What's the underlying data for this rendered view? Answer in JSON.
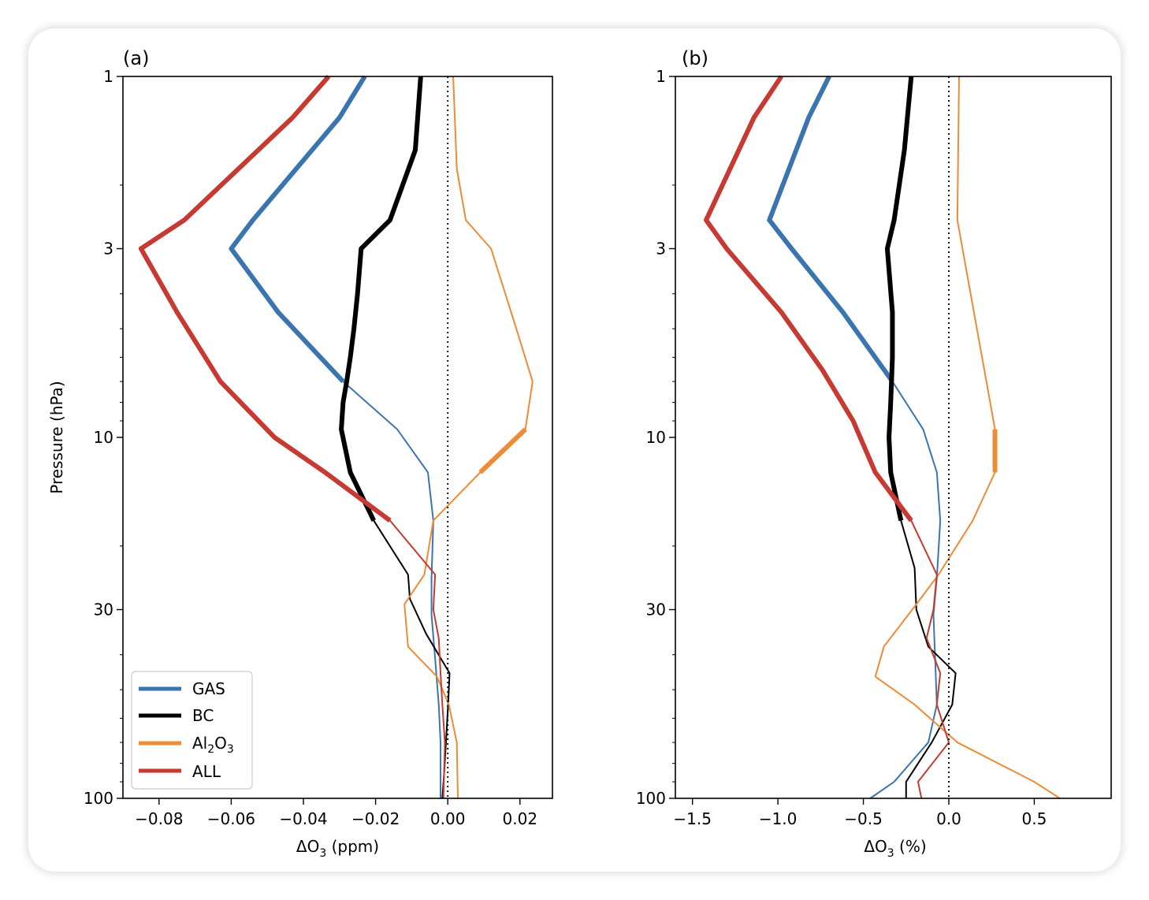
{
  "chart_data": [
    {
      "type": "line",
      "panel": "(a)",
      "title": "(a)",
      "xlabel": "ΔO",
      "xlabel_sub": "3",
      "xlabel_unit": " (ppm)",
      "ylabel": "Pressure (hPa)",
      "y_scale": "log",
      "y_inverted": true,
      "xlim": [
        -0.09,
        0.029
      ],
      "ylim": [
        100,
        1
      ],
      "xticks": [
        -0.08,
        -0.06,
        -0.04,
        -0.02,
        0.0,
        0.02
      ],
      "xtick_labels": [
        "−0.08",
        "−0.06",
        "−0.04",
        "−0.02",
        "0.00",
        "0.02"
      ],
      "yticks": [
        1,
        3,
        10,
        30,
        100
      ],
      "ytick_labels": [
        "1",
        "3",
        "10",
        "30",
        "100"
      ],
      "zero_line": 0,
      "series": [
        {
          "name": "GAS",
          "color": "#3b75af",
          "x": [
            -0.023,
            -0.03,
            -0.054,
            -0.06,
            -0.047,
            -0.029,
            -0.014,
            -0.0055,
            -0.004,
            -0.0045,
            -0.0045,
            -0.0035,
            -0.0025,
            -0.002,
            -0.002
          ],
          "y": [
            1,
            1.3,
            2.5,
            3,
            4.5,
            7,
            9.5,
            12.5,
            17,
            24.5,
            31,
            41,
            55,
            70,
            100
          ],
          "thick_until": 7
        },
        {
          "name": "BC",
          "color": "#000000",
          "x": [
            -0.0075,
            -0.009,
            -0.016,
            -0.024,
            -0.025,
            -0.026,
            -0.027,
            -0.028,
            -0.029,
            -0.0295,
            -0.027,
            -0.0205,
            -0.011,
            -0.0105,
            -0.006,
            0.0005,
            0.0001,
            -0.0005,
            -0.001,
            -0.0015
          ],
          "y": [
            1,
            1.6,
            2.5,
            3,
            4,
            5,
            6,
            7,
            8,
            9.5,
            12.5,
            17,
            24,
            28,
            35,
            45,
            55,
            70,
            85,
            100
          ],
          "thick_until": 17
        },
        {
          "name": "Al₂O₃",
          "color": "#ef8a35",
          "x": [
            0.0015,
            0.0025,
            0.005,
            0.012,
            0.019,
            0.0235,
            0.0215,
            0.009,
            -0.004,
            -0.0065,
            -0.012,
            -0.011,
            -0.003,
            0.0003,
            0.0025,
            0.0028
          ],
          "y": [
            1,
            1.8,
            2.5,
            3,
            5,
            7,
            9.5,
            12.5,
            17,
            24,
            29,
            38,
            46,
            55,
            70,
            100
          ],
          "thick_range": [
            9.5,
            12.5
          ]
        },
        {
          "name": "ALL",
          "color": "#c63a31",
          "x": [
            -0.033,
            -0.043,
            -0.073,
            -0.085,
            -0.075,
            -0.063,
            -0.048,
            -0.034,
            -0.016,
            -0.0035,
            -0.004,
            -0.0025,
            -0.002,
            -0.0015,
            -0.0008,
            -0.0012
          ],
          "y": [
            1,
            1.3,
            2.5,
            3,
            4.5,
            7,
            10,
            12.5,
            17,
            24,
            30,
            36,
            45,
            55,
            70,
            100
          ],
          "thick_until": 17
        }
      ],
      "legend": {
        "position": "lower left",
        "entries": [
          {
            "label": "GAS",
            "color": "#3b75af"
          },
          {
            "label": "BC",
            "color": "#000000"
          },
          {
            "label_main": "Al",
            "sub1": "2",
            "mid": "O",
            "sub2": "3",
            "color": "#ef8a35"
          },
          {
            "label": "ALL",
            "color": "#c63a31"
          }
        ]
      }
    },
    {
      "type": "line",
      "panel": "(b)",
      "title": "(b)",
      "xlabel": "ΔO",
      "xlabel_sub": "3",
      "xlabel_unit": " (%)",
      "y_scale": "log",
      "y_inverted": true,
      "xlim": [
        -1.6,
        0.95
      ],
      "ylim": [
        100,
        1
      ],
      "xticks": [
        -1.5,
        -1.0,
        -0.5,
        0.0,
        0.5
      ],
      "xtick_labels": [
        "−1.5",
        "−1.0",
        "−0.5",
        "0.0",
        "0.5"
      ],
      "yticks": [
        1,
        3,
        10,
        30,
        100
      ],
      "ytick_labels": [
        "1",
        "3",
        "10",
        "30",
        "100"
      ],
      "zero_line": 0,
      "series": [
        {
          "name": "GAS",
          "color": "#3b75af",
          "x": [
            -0.7,
            -0.82,
            -1.05,
            -0.92,
            -0.62,
            -0.33,
            -0.15,
            -0.07,
            -0.05,
            -0.07,
            -0.09,
            -0.08,
            -0.07,
            -0.12,
            -0.32,
            -0.46
          ],
          "y": [
            1,
            1.3,
            2.5,
            3,
            4.5,
            7,
            9.5,
            12.5,
            17,
            24.5,
            31,
            41,
            55,
            70,
            90,
            100
          ],
          "thick_until": 7
        },
        {
          "name": "BC",
          "color": "#000000",
          "x": [
            -0.22,
            -0.26,
            -0.32,
            -0.36,
            -0.33,
            -0.33,
            -0.34,
            -0.35,
            -0.34,
            -0.28,
            -0.2,
            -0.19,
            -0.12,
            0.04,
            0.02,
            -0.1,
            -0.25,
            -0.25
          ],
          "y": [
            1,
            1.6,
            2.5,
            3,
            4.5,
            6,
            8,
            10,
            12.5,
            17,
            23,
            30,
            38,
            45,
            55,
            70,
            90,
            100
          ],
          "thick_until": 17
        },
        {
          "name": "Al₂O₃",
          "color": "#ef8a35",
          "x": [
            0.06,
            0.05,
            0.08,
            0.22,
            0.27,
            0.27,
            0.14,
            -0.06,
            -0.19,
            -0.38,
            -0.43,
            -0.2,
            0.05,
            0.5,
            0.65
          ],
          "y": [
            1,
            2.5,
            3,
            7,
            9.5,
            12.5,
            17,
            24,
            29,
            38,
            46,
            55,
            70,
            90,
            100
          ],
          "thick_range": [
            9.5,
            12.5
          ]
        },
        {
          "name": "ALL",
          "color": "#c63a31",
          "x": [
            -0.98,
            -1.14,
            -1.42,
            -1.3,
            -0.98,
            -0.74,
            -0.56,
            -0.43,
            -0.22,
            -0.07,
            -0.09,
            -0.13,
            -0.05,
            -0.07,
            0.0,
            -0.18,
            -0.16
          ],
          "y": [
            1,
            1.3,
            2.5,
            3,
            4.5,
            6.5,
            9,
            12.5,
            17,
            24,
            30,
            36,
            45,
            55,
            70,
            90,
            100
          ],
          "thick_until": 17
        }
      ]
    }
  ]
}
